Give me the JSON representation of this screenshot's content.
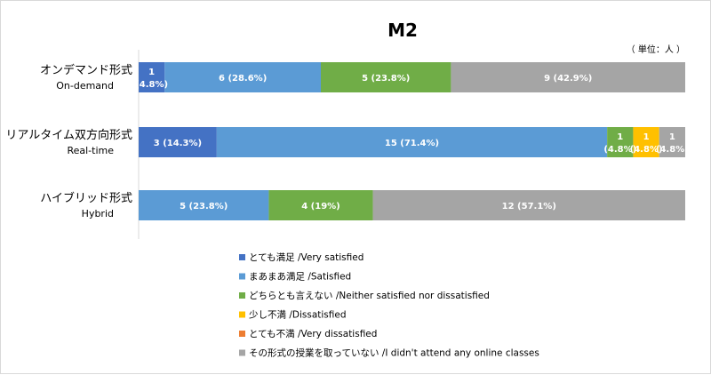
{
  "chart_data": {
    "type": "bar",
    "orientation": "horizontal-stacked",
    "title": "M2",
    "unit_note": "（ 単位：人 ）",
    "categories": [
      {
        "jp": "オンデマンド形式",
        "en": "On-demand"
      },
      {
        "jp": "リアルタイム双方向形式",
        "en": "Real-time"
      },
      {
        "jp": "ハイブリッド形式",
        "en": "Hybrid"
      }
    ],
    "series": [
      {
        "name": "とても満足 /Very satisfied",
        "color": "#4472c4",
        "values": [
          1,
          3,
          0
        ],
        "labels": [
          "1 (4.8%)",
          "3 (14.3%)",
          ""
        ]
      },
      {
        "name": "まあまあ満足 /Satisfied",
        "color": "#5b9bd5",
        "values": [
          6,
          15,
          5
        ],
        "labels": [
          "6 (28.6%)",
          "15 (71.4%)",
          "5 (23.8%)"
        ]
      },
      {
        "name": "どちらとも言えない /Neither satisfied nor dissatisfied",
        "color": "#70ad47",
        "values": [
          5,
          1,
          4
        ],
        "labels": [
          "5 (23.8%)",
          "1 (4.8%)",
          "4 (19%)"
        ]
      },
      {
        "name": "少し不満 /Dissatisfied",
        "color": "#ffc000",
        "values": [
          0,
          1,
          0
        ],
        "labels": [
          "",
          "1 (4.8%)",
          ""
        ]
      },
      {
        "name": "とても不満 /Very dissatisfied",
        "color": "#ed7d31",
        "values": [
          0,
          0,
          0
        ],
        "labels": [
          "",
          "",
          ""
        ]
      },
      {
        "name": "その形式の授業を取っていない /I didn't attend any online classes",
        "color": "#a5a5a5",
        "values": [
          9,
          1,
          12
        ],
        "labels": [
          "9 (42.9%)",
          "1 (4.8%)",
          "12 (57.1%)"
        ]
      }
    ],
    "xlim": [
      0,
      21
    ],
    "grid": false,
    "legend_position": "bottom"
  }
}
